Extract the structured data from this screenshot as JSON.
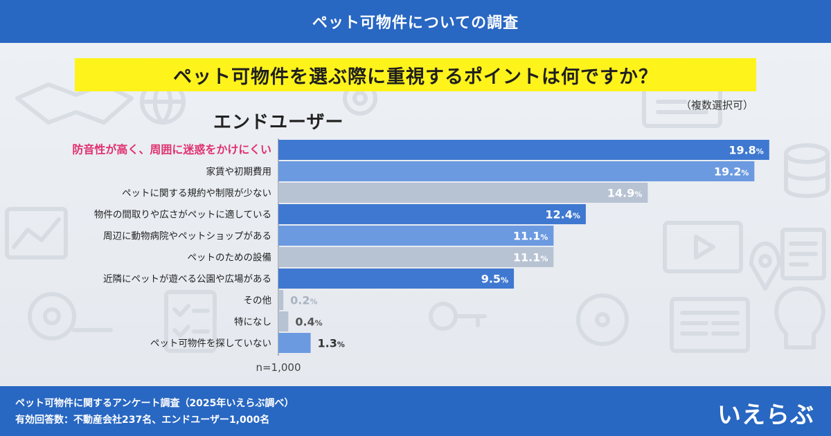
{
  "header": {
    "title": "ペット可物件についての調査"
  },
  "question": {
    "text": "ペット可物件を選ぶ際に重視するポイントは何ですか？"
  },
  "note": "（複数選択可）",
  "segment": "エンドユーザー",
  "sample": "n=1,000",
  "footer": {
    "line1": "ペット可物件に関するアンケート調査（2025年いえらぶ調べ）",
    "line2": "有効回答数：不動産会社237名、エンドユーザー1,000名"
  },
  "logo": "いえらぶ",
  "colors": {
    "header_bg": "#2867c2",
    "question_bg": "#fff31c",
    "bar_dark": "#3f78d0",
    "bar_mid": "#6b9ae0",
    "bar_light": "#b7c3d3",
    "highlight_label": "#e0306e"
  },
  "chart_data": {
    "type": "bar",
    "orientation": "horizontal",
    "categories": [
      "防音性が高く、周囲に迷惑をかけにくい",
      "家賃や初期費用",
      "ペットに関する規約や制限が少ない",
      "物件の間取りや広さがペットに適している",
      "周辺に動物病院やペットショップがある",
      "ペットのための設備",
      "近隣にペットが遊べる公園や広場がある",
      "その他",
      "特になし",
      "ペット可物件を探していない"
    ],
    "values": [
      19.8,
      19.2,
      14.9,
      12.4,
      11.1,
      11.1,
      9.5,
      0.2,
      0.4,
      1.3
    ],
    "value_labels": [
      "19.8",
      "19.2",
      "14.9",
      "12.4",
      "11.1",
      "11.1",
      "9.5",
      "0.2",
      "0.4",
      "1.3"
    ],
    "unit": "%",
    "bar_colors": [
      "#3f78d0",
      "#6b9ae0",
      "#b7c3d3",
      "#3f78d0",
      "#6b9ae0",
      "#b7c3d3",
      "#3f78d0",
      "#b7c3d3",
      "#b7c3d3",
      "#6b9ae0"
    ],
    "highlight_index": 0,
    "xlim": [
      0,
      20
    ],
    "grid": false,
    "legend": "none"
  }
}
